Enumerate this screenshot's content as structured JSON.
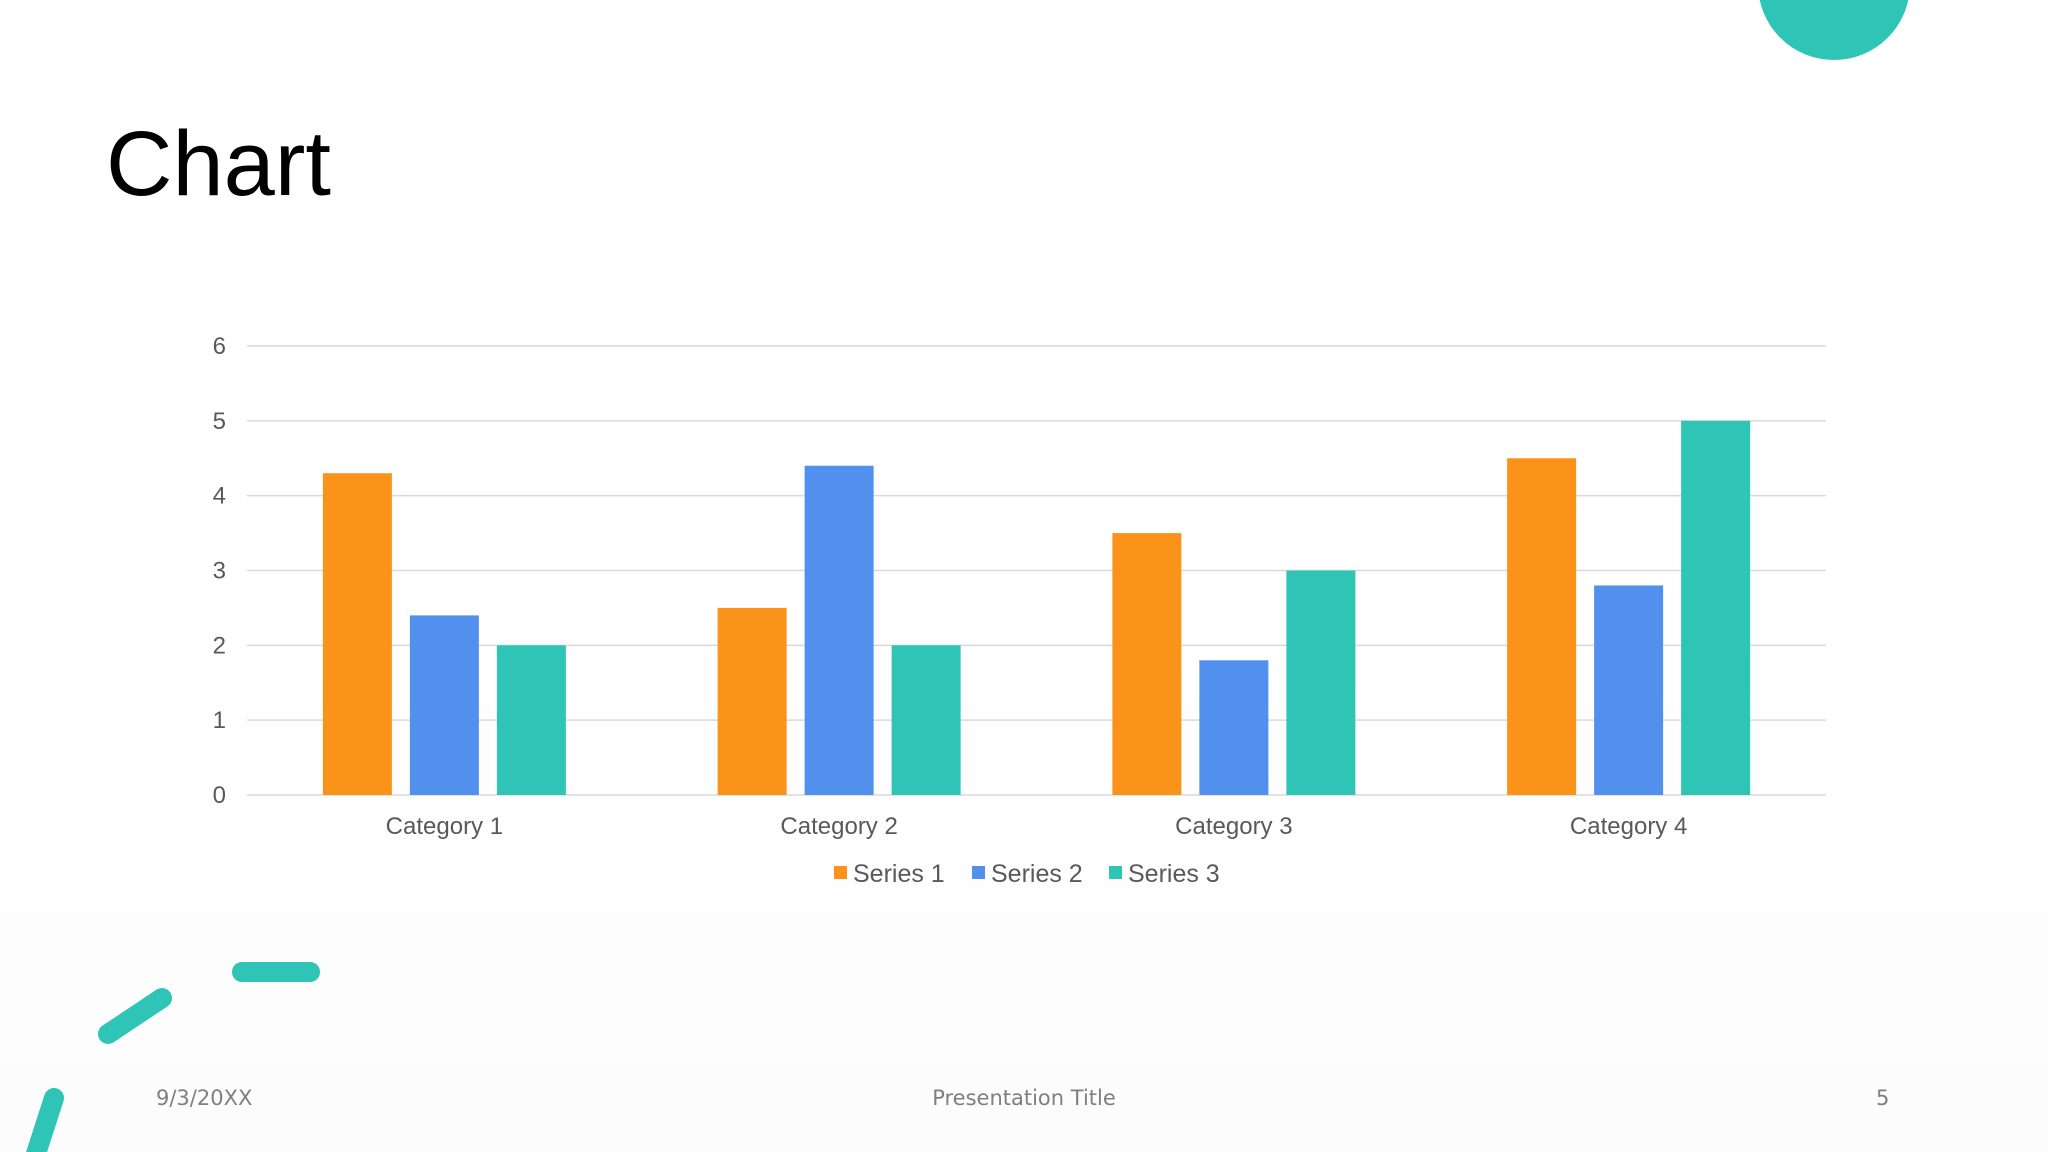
{
  "slide": {
    "title": "Chart",
    "footer": {
      "date": "9/3/20XX",
      "title": "Presentation Title",
      "page": "5"
    }
  },
  "colors": {
    "accent": "#2ec4b6",
    "series_1": "#fb9219",
    "series_2": "#5190ec",
    "series_3": "#2ec4b6",
    "gridline": "#d9d9d9",
    "axis_text": "#595959"
  },
  "chart_data": {
    "type": "bar",
    "title": "",
    "xlabel": "",
    "ylabel": "",
    "categories": [
      "Category 1",
      "Category 2",
      "Category 3",
      "Category 4"
    ],
    "series": [
      {
        "name": "Series 1",
        "color": "#fb9219",
        "values": [
          4.3,
          2.5,
          3.5,
          4.5
        ]
      },
      {
        "name": "Series 2",
        "color": "#5190ec",
        "values": [
          2.4,
          4.4,
          1.8,
          2.8
        ]
      },
      {
        "name": "Series 3",
        "color": "#2ec4b6",
        "values": [
          2,
          2,
          3,
          5
        ]
      }
    ],
    "ylim": [
      0,
      6
    ],
    "yticks": [
      "0",
      "1",
      "2",
      "3",
      "4",
      "5",
      "6"
    ],
    "grid": true,
    "legend": "bottom"
  }
}
